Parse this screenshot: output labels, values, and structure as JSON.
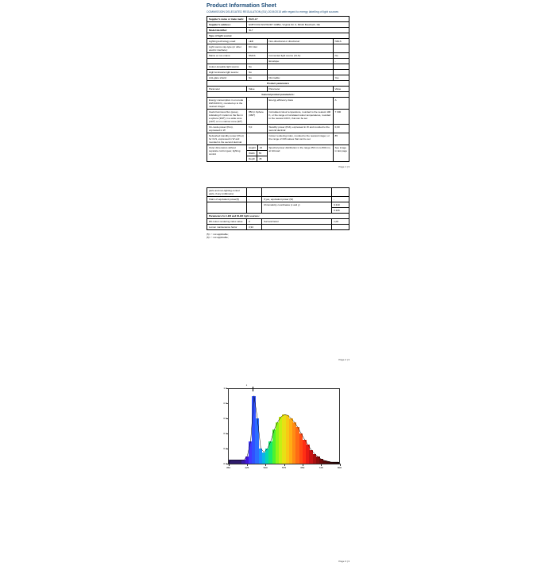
{
  "doc": {
    "title": "Product Information Sheet",
    "subtitle": "COMMISSION DELEGATED REGULATION (EU) 2019/2015 with regard to energy labelling of light sources",
    "supplier_name_label": "Supplier's name or trade mark:",
    "supplier_name": "BERLET",
    "supplier_addr_label": "Supplier's address:",
    "supplier_addr": "EUBYOOZ ADVISORY GMBH, Virginia Str. 6, 66110 Buschach, DE",
    "model_id_label": "Model identifier:",
    "model_id": "SL7"
  },
  "s1": {
    "head": "Type of light source:"
  },
  "r1": {
    "a": "Lighting technology used:",
    "b": "LED",
    "c": "Non-directional or directional:",
    "d": "NDLS"
  },
  "r2": {
    "a": "Light source cap-type (or other electric interface):",
    "b": "DC inlet",
    "c": "",
    "d": ""
  },
  "r3": {
    "a": "Mains or non-mains:",
    "b": "NMLS",
    "c": "Connected light source (CLS):",
    "d": "No"
  },
  "r4": {
    "a": "",
    "b": "",
    "c": "Envelope:",
    "d": "-"
  },
  "r5": {
    "a": "Colour-tuneable light source:",
    "b": "No",
    "c": "",
    "d": ""
  },
  "r6": {
    "a": "High luminance light source:",
    "b": "No",
    "c": "",
    "d": ""
  },
  "r7": {
    "a": "Anti-glare shield:",
    "b": "No",
    "c": "Dimmable:",
    "d": "Yes"
  },
  "pp": {
    "head": "Product parameters"
  },
  "hdr": {
    "a": "Parameter",
    "b": "Value",
    "c": "Parameter",
    "d": "Value"
  },
  "gp": {
    "head": "General product parameters:"
  },
  "g1": {
    "a": "Energy consumption in on-mode kWh/1000 h), rounded up to the nearest integer",
    "b": "-",
    "c": "Energy efficiency class",
    "d": "A"
  },
  "g2": {
    "a": "Useful luminous flux (φuse), indicating if it refers to the flux in a sphere (360º), in a wide cone (120º) or in a narrow cone (90º)",
    "b": "850 in Sphere (360º)",
    "c": "Correlated colour temperature, rounded to the nearest 100 K, or the range of correlated colour temperatures, rounded to the nearest 100 K, that can be set",
    "d": "7 000"
  },
  "g3": {
    "a": "On-mode power (Pon), expressed in W",
    "b": "5,0",
    "c": "Standby power (Psb), expressed in W and rounded to the second decimal",
    "d": "0,00"
  },
  "g4": {
    "a": "Networked standby power (Pnet) for CLS, expressed in W and rounded to the second decimal",
    "b": "-",
    "c": "Colour rendering index, rounded to the nearest integer, or the range of CRI-values that can be set",
    "d": "85"
  },
  "g5a": {
    "a": "Outer dimensions without separate control gear, lighting control",
    "h": "Height",
    "hv": "22",
    "w": "Width",
    "wv": "55",
    "d": "Depth",
    "dv": "45",
    "c": "Spectral power distribution in the range 250 nm to 800 nm, at full-load",
    "v": "See image in last page"
  },
  "p1foot": "Page 1 | 3",
  "g6": {
    "a": "parts and non-lighting control parts, if any (millimetre)"
  },
  "g7": {
    "a": "Claim of equivalent power(5)",
    "b": "-",
    "c": "If yes, equivalent power (W)",
    "d": "-"
  },
  "g8": {
    "a": "",
    "b": "",
    "c": "Chromaticity coordinates (x and y)",
    "d1": "0.310",
    "d2": "0.326"
  },
  "lo": {
    "head": "Parameters for LED and OLED light sources:"
  },
  "l1": {
    "a": "R9 colour rendering index value",
    "b": "0",
    "c": "Survival factor",
    "d": "1,00"
  },
  "l2": {
    "a": "Lumen maintenance factor",
    "b": "0,94",
    "c": "",
    "d": ""
  },
  "fn1": "(5) '-': not applicable;",
  "fn2": "(6) '-': not applicable;",
  "p2foot": "Page 2 | 3",
  "p3foot": "Page 3 | 3",
  "chart": {
    "yticks": [
      "1.0",
      "0.8",
      "0.6",
      "0.4",
      "0.2",
      "0.0"
    ],
    "xticks": [
      "350",
      "425",
      "500",
      "575",
      "650",
      "725",
      "800"
    ],
    "peak": [
      0.05,
      0.05,
      0.05,
      0.05,
      0.05,
      0.1,
      0.3,
      0.9,
      0.6,
      0.2,
      0.15,
      0.2,
      0.3,
      0.45,
      0.55,
      0.62,
      0.65,
      0.64,
      0.6,
      0.55,
      0.48,
      0.4,
      0.32,
      0.25,
      0.18,
      0.13,
      0.09,
      0.06,
      0.04,
      0.03,
      0.02,
      0.02,
      0.02
    ],
    "colors": [
      "#2e1a6b",
      "#2e1a6b",
      "#2e1a6b",
      "#2e1a6b",
      "#3818a8",
      "#4015d9",
      "#4338ff",
      "#3050ff",
      "#2c6dff",
      "#1a90ff",
      "#0ab4e8",
      "#06d5b5",
      "#18e870",
      "#4cf230",
      "#8ff516",
      "#c4f014",
      "#e8e015",
      "#f8c914",
      "#ffad14",
      "#ff8c14",
      "#ff6b14",
      "#ff4a14",
      "#ff2e14",
      "#e81a14",
      "#c81414",
      "#a81010",
      "#8a0c0c",
      "#700a0a",
      "#5a0808",
      "#480606",
      "#380505",
      "#2c0404",
      "#220303"
    ],
    "arrow": "λ"
  }
}
